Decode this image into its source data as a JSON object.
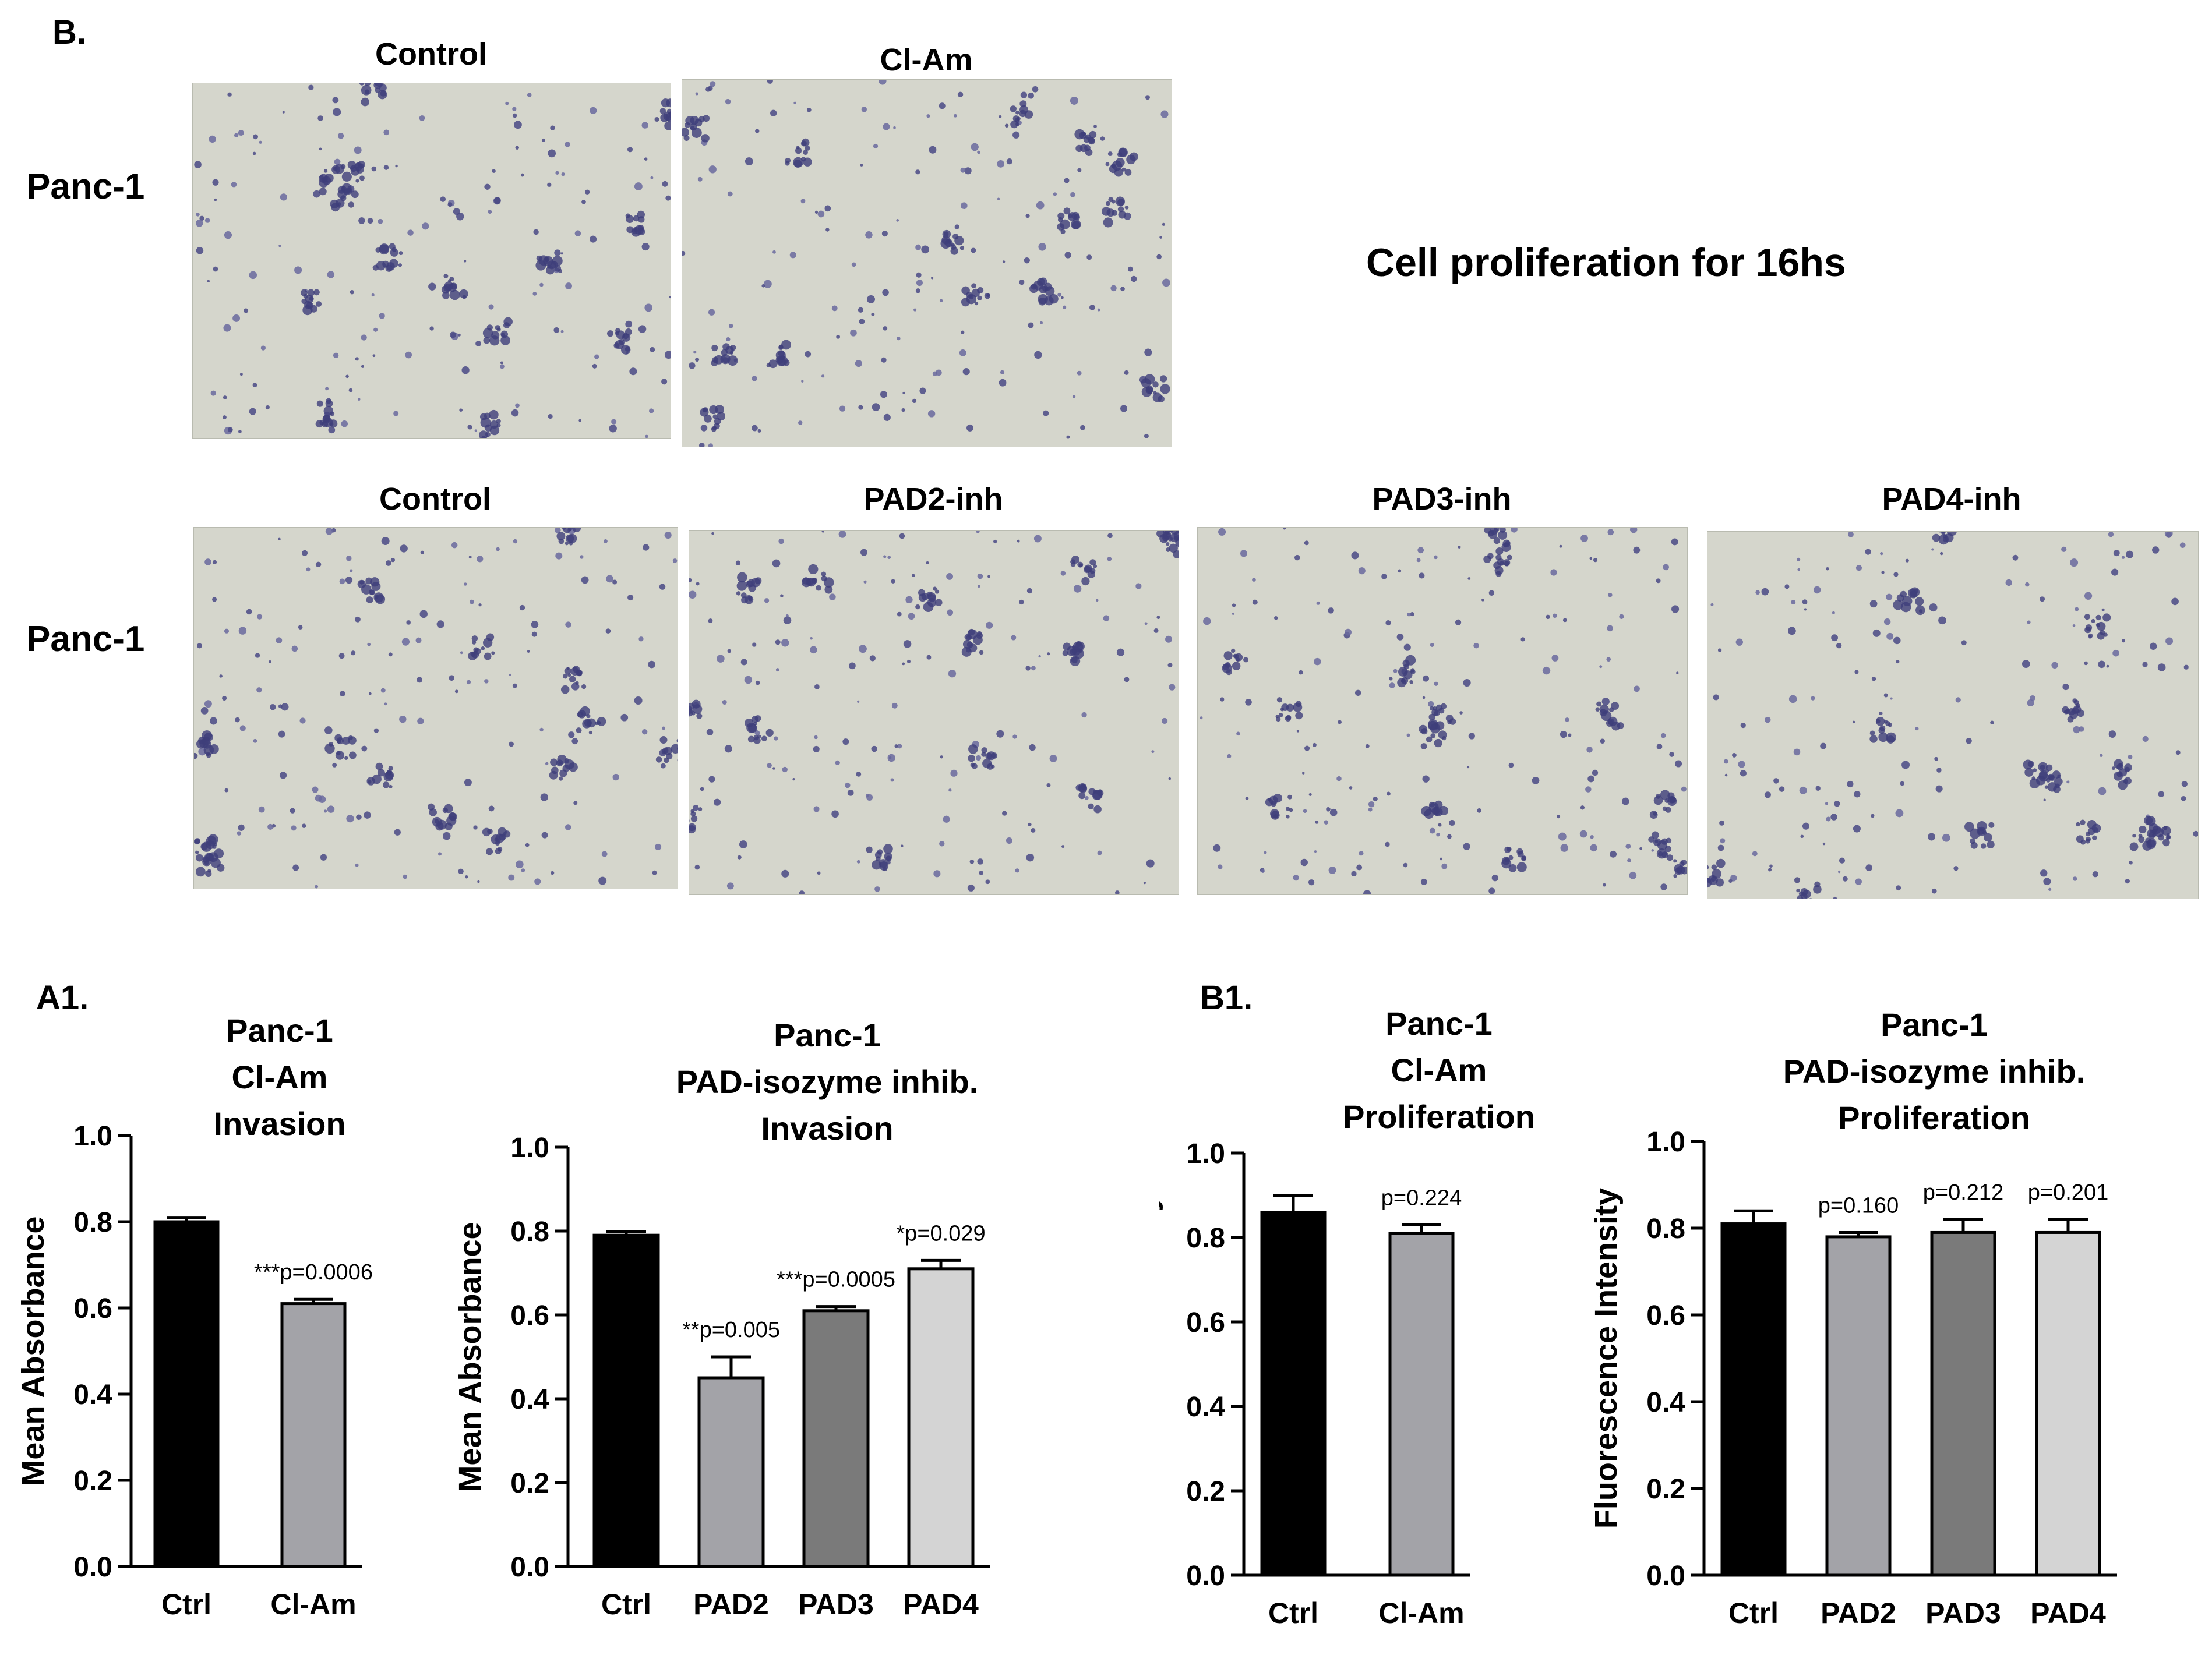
{
  "panel_b": {
    "letter": "B.",
    "row1": {
      "label": "Panc-1",
      "images": [
        {
          "title": "Control"
        },
        {
          "title": "Cl-Am"
        }
      ]
    },
    "note": "Cell proliferation for 16hs",
    "row2": {
      "label": "Panc-1",
      "images": [
        {
          "title": "Control"
        },
        {
          "title": "PAD2-inh"
        },
        {
          "title": "PAD3-inh"
        },
        {
          "title": "PAD4-inh"
        }
      ]
    }
  },
  "panel_a1": {
    "letter": "A1."
  },
  "panel_b1": {
    "letter": "B1."
  },
  "chart_data": [
    {
      "type": "bar",
      "title_lines": [
        "Panc-1",
        "Cl-Am",
        "Invasion"
      ],
      "ylabel": "Mean Absorbance",
      "ylim": [
        0,
        1.0
      ],
      "yticks": [
        "0.0",
        "0.2",
        "0.4",
        "0.6",
        "0.8",
        "1.0"
      ],
      "categories": [
        "Ctrl",
        "Cl-Am"
      ],
      "values": [
        0.8,
        0.61
      ],
      "errors": [
        0.01,
        0.01
      ],
      "annotations": [
        "",
        "***p=0.0006"
      ],
      "colors": [
        "#000000",
        "#a3a3a8"
      ]
    },
    {
      "type": "bar",
      "title_lines": [
        "Panc-1",
        "PAD-isozyme  inhib.",
        "Invasion"
      ],
      "ylabel": "Mean Absorbance",
      "ylim": [
        0,
        1.0
      ],
      "yticks": [
        "0.0",
        "0.2",
        "0.4",
        "0.6",
        "0.8",
        "1.0"
      ],
      "categories": [
        "Ctrl",
        "PAD2",
        "PAD3",
        "PAD4"
      ],
      "values": [
        0.79,
        0.45,
        0.61,
        0.71
      ],
      "errors": [
        0.008,
        0.05,
        0.01,
        0.02
      ],
      "annotations": [
        "",
        "**p=0.005",
        "***p=0.0005",
        "*p=0.029"
      ],
      "colors": [
        "#000000",
        "#a3a3a8",
        "#7a7a7a",
        "#d4d4d4"
      ]
    },
    {
      "type": "bar",
      "title_lines": [
        "Panc-1",
        "Cl-Am",
        "Proliferation"
      ],
      "ylabel": "Fluorescence Intensity",
      "ylim": [
        0,
        1.0
      ],
      "yticks": [
        "0.0",
        "0.2",
        "0.4",
        "0.6",
        "0.8",
        "1.0"
      ],
      "categories": [
        "Ctrl",
        "Cl-Am"
      ],
      "values": [
        0.86,
        0.81
      ],
      "errors": [
        0.04,
        0.02
      ],
      "annotations": [
        "",
        "p=0.224"
      ],
      "colors": [
        "#000000",
        "#a3a3a8"
      ]
    },
    {
      "type": "bar",
      "title_lines": [
        "Panc-1",
        "PAD-isozyme  inhib.",
        "Proliferation"
      ],
      "ylabel": "Fluorescence Intensity",
      "ylim": [
        0,
        1.0
      ],
      "yticks": [
        "0.0",
        "0.2",
        "0.4",
        "0.6",
        "0.8",
        "1.0"
      ],
      "categories": [
        "Ctrl",
        "PAD2",
        "PAD3",
        "PAD4"
      ],
      "values": [
        0.81,
        0.78,
        0.79,
        0.79
      ],
      "errors": [
        0.03,
        0.01,
        0.03,
        0.03
      ],
      "annotations": [
        "",
        "p=0.160",
        "p=0.212",
        "p=0.201"
      ],
      "colors": [
        "#000000",
        "#a3a3a8",
        "#7a7a7a",
        "#d4d4d4"
      ]
    }
  ]
}
